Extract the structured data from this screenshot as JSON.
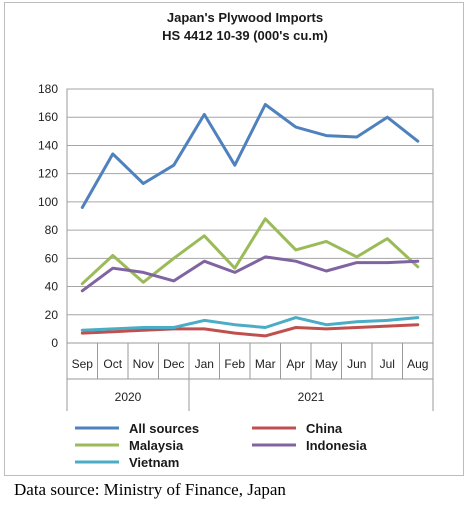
{
  "chart_data": {
    "type": "line",
    "title": "Japan's Plywood Imports",
    "subtitle": "HS 4412 10-39 (000's cu.m)",
    "categories": [
      "Sep",
      "Oct",
      "Nov",
      "Dec",
      "Jan",
      "Feb",
      "Mar",
      "Apr",
      "May",
      "Jun",
      "Jul",
      "Aug"
    ],
    "year_groups": [
      {
        "label": "2020",
        "count": 4
      },
      {
        "label": "2021",
        "count": 8
      }
    ],
    "yticks": [
      "0",
      "20",
      "40",
      "60",
      "80",
      "100",
      "120",
      "140",
      "160",
      "180"
    ],
    "ylim": [
      0,
      180
    ],
    "grid": true,
    "legend_position": "bottom",
    "series": [
      {
        "name": "All sources",
        "color": "#4f81bd",
        "values": [
          96,
          134,
          113,
          126,
          162,
          126,
          169,
          153,
          147,
          146,
          160,
          143
        ]
      },
      {
        "name": "China",
        "color": "#c0504d",
        "values": [
          7,
          8,
          9,
          10,
          10,
          7,
          5,
          11,
          10,
          11,
          12,
          13
        ]
      },
      {
        "name": "Malaysia",
        "color": "#9bbb59",
        "values": [
          42,
          62,
          43,
          60,
          76,
          53,
          88,
          66,
          72,
          61,
          74,
          54
        ]
      },
      {
        "name": "Indonesia",
        "color": "#8064a2",
        "values": [
          37,
          53,
          50,
          44,
          58,
          50,
          61,
          58,
          51,
          57,
          57,
          58
        ]
      },
      {
        "name": "Vietnam",
        "color": "#4bacc6",
        "values": [
          9,
          10,
          11,
          11,
          16,
          13,
          11,
          18,
          13,
          15,
          16,
          18
        ]
      }
    ]
  },
  "source_note": "Data source: Ministry of Finance, Japan"
}
